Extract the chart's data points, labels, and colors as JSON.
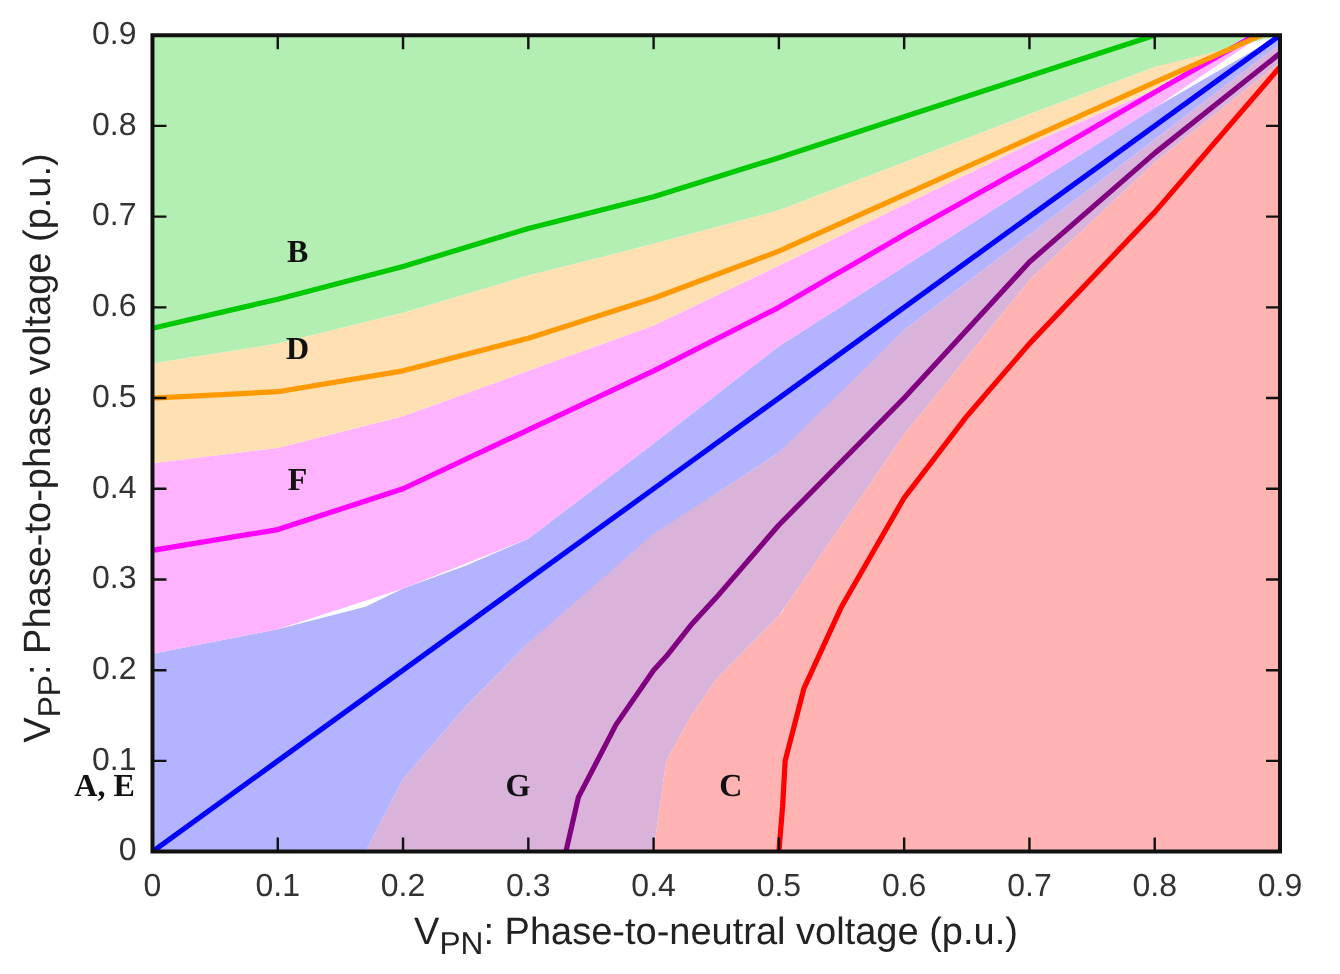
{
  "chart_data": {
    "type": "line",
    "xlabel": "V$_{PN}$: Phase-to-neutral voltage (p.u.)",
    "ylabel": "V$_{PP}$: Phase-to-phase voltage (p.u.)",
    "xlim": [
      0,
      0.9
    ],
    "ylim": [
      0,
      0.9
    ],
    "xticks": [
      0,
      0.1,
      0.2,
      0.3,
      0.4,
      0.5,
      0.6,
      0.7,
      0.8,
      0.9
    ],
    "yticks": [
      0,
      0.1,
      0.2,
      0.3,
      0.4,
      0.5,
      0.6,
      0.7,
      0.8,
      0.9
    ],
    "series": [
      {
        "name": "B",
        "color": "#00c800",
        "x": [
          0,
          0.1,
          0.2,
          0.3,
          0.4,
          0.5,
          0.6,
          0.7,
          0.8,
          0.9
        ],
        "values": [
          0.577,
          0.609,
          0.645,
          0.687,
          0.722,
          0.765,
          0.81,
          0.855,
          0.9,
          null
        ],
        "lower": [
          0.538,
          0.56,
          0.594,
          0.635,
          0.67,
          0.707,
          0.76,
          0.813,
          0.865,
          0.9
        ],
        "upper": [
          0.9,
          0.9,
          0.9,
          0.9,
          0.9,
          0.9,
          0.9,
          0.9,
          0.9,
          0.9
        ]
      },
      {
        "name": "D",
        "color": "#ff9900",
        "x": [
          0,
          0.1,
          0.2,
          0.3,
          0.4,
          0.5,
          0.6,
          0.7,
          0.8,
          0.885
        ],
        "values": [
          0.5,
          0.507,
          0.53,
          0.566,
          0.61,
          0.662,
          0.724,
          0.786,
          0.848,
          0.9
        ],
        "lower": [
          0.428,
          0.445,
          0.48,
          0.53,
          0.58,
          0.646,
          0.713,
          0.78,
          0.84,
          0.9
        ],
        "upper": [
          0.538,
          0.56,
          0.594,
          0.635,
          0.67,
          0.707,
          0.76,
          0.813,
          0.865,
          0.9
        ]
      },
      {
        "name": "F",
        "color": "#ff00ff",
        "x": [
          0,
          0.1,
          0.2,
          0.3,
          0.4,
          0.5,
          0.6,
          0.7,
          0.8,
          0.88
        ],
        "values": [
          0.332,
          0.355,
          0.4,
          0.465,
          0.53,
          0.6,
          0.68,
          0.757,
          0.837,
          0.9
        ],
        "lower": [
          0.218,
          0.245,
          0.29,
          0.345,
          0.45,
          0.557,
          0.645,
          0.733,
          0.82,
          0.895
        ],
        "upper": [
          0.428,
          0.445,
          0.48,
          0.53,
          0.58,
          0.646,
          0.713,
          0.78,
          0.84,
          0.9
        ]
      },
      {
        "name": "A, E",
        "color": "#0000ff",
        "x": [
          0,
          0.1,
          0.17,
          0.2,
          0.25,
          0.3,
          0.4,
          0.5,
          0.6,
          0.7,
          0.8,
          0.9
        ],
        "values": [
          0,
          0.1,
          0.17,
          0.2,
          0.25,
          0.3,
          0.4,
          0.5,
          0.6,
          0.7,
          0.8,
          0.9
        ],
        "lower": [
          0,
          0,
          0,
          0.08,
          0.16,
          0.23,
          0.35,
          0.44,
          0.575,
          0.68,
          0.785,
          0.89
        ],
        "upper": [
          0.218,
          0.245,
          0.27,
          0.29,
          0.315,
          0.345,
          0.45,
          0.557,
          0.645,
          0.733,
          0.82,
          0.9
        ]
      },
      {
        "name": "G",
        "color": "#800080",
        "x": [
          0.17,
          0.2,
          0.25,
          0.3,
          0.33,
          0.34,
          0.37,
          0.4,
          0.41,
          0.43,
          0.45,
          0.5,
          0.55,
          0.6,
          0.7,
          0.8,
          0.9
        ],
        "values": [
          null,
          null,
          null,
          null,
          0,
          0.06,
          0.14,
          0.2,
          0.215,
          0.25,
          0.28,
          0.36,
          0.43,
          0.5,
          0.65,
          0.77,
          0.88
        ],
        "lower": [
          0,
          0,
          0,
          0,
          0,
          0,
          0,
          0,
          0.1,
          0.15,
          0.19,
          0.26,
          0.36,
          0.46,
          0.63,
          0.76,
          0.87
        ],
        "upper": [
          0,
          0.08,
          0.16,
          0.23,
          0.27,
          0.28,
          0.32,
          0.35,
          0.36,
          0.38,
          0.395,
          0.44,
          0.51,
          0.575,
          0.68,
          0.785,
          0.89
        ]
      },
      {
        "name": "C",
        "color": "#ff0000",
        "x": [
          0.4,
          0.41,
          0.43,
          0.45,
          0.5,
          0.503,
          0.505,
          0.52,
          0.55,
          0.6,
          0.65,
          0.7,
          0.8,
          0.9
        ],
        "values": [
          null,
          null,
          null,
          null,
          0,
          0.05,
          0.1,
          0.18,
          0.27,
          0.39,
          0.48,
          0.56,
          0.705,
          0.865
        ],
        "lower": [
          0,
          0,
          0,
          0,
          0,
          0,
          0,
          0,
          0,
          0,
          0,
          0,
          0,
          0
        ],
        "upper": [
          0,
          0.1,
          0.15,
          0.19,
          0.26,
          0.265,
          0.27,
          0.3,
          0.36,
          0.46,
          0.545,
          0.63,
          0.76,
          0.87
        ]
      }
    ]
  }
}
